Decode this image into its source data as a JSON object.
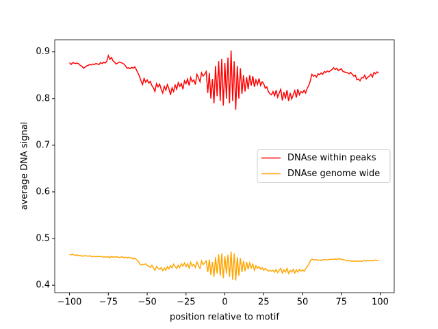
{
  "chart_data": {
    "type": "line",
    "xlabel": "position relative to motif",
    "ylabel": "average DNA signal",
    "xlim": [
      -109.5,
      109
    ],
    "ylim": [
      0.384,
      0.926
    ],
    "xticks": [
      {
        "value": -100,
        "label": "−100"
      },
      {
        "value": -75,
        "label": "−75"
      },
      {
        "value": -50,
        "label": "−50"
      },
      {
        "value": -25,
        "label": "−25"
      },
      0,
      25,
      50,
      75,
      100
    ],
    "yticks": [
      0.4,
      0.5,
      0.6,
      0.7,
      0.8,
      0.9
    ],
    "legend": "center right",
    "x": [
      -100,
      -99,
      -98,
      -97,
      -96,
      -95,
      -94,
      -93,
      -92,
      -91,
      -90,
      -89,
      -88,
      -87,
      -86,
      -85,
      -84,
      -83,
      -82,
      -81,
      -80,
      -79,
      -78,
      -77,
      -76,
      -75,
      -74,
      -73,
      -72,
      -71,
      -70,
      -69,
      -68,
      -67,
      -66,
      -65,
      -64,
      -63,
      -62,
      -61,
      -60,
      -59,
      -58,
      -57,
      -56,
      -55,
      -54,
      -53,
      -52,
      -51,
      -50,
      -49,
      -48,
      -47,
      -46,
      -45,
      -44,
      -43,
      -42,
      -41,
      -40,
      -39,
      -38,
      -37,
      -36,
      -35,
      -34,
      -33,
      -32,
      -31,
      -30,
      -29,
      -28,
      -27,
      -26,
      -25,
      -24,
      -23,
      -22,
      -21,
      -20,
      -19,
      -18,
      -17,
      -16,
      -15,
      -14,
      -13,
      -12,
      -11,
      -10,
      -9,
      -8,
      -7,
      -6,
      -5,
      -4,
      -3,
      -2,
      -1,
      0,
      1,
      2,
      3,
      4,
      5,
      6,
      7,
      8,
      9,
      10,
      11,
      12,
      13,
      14,
      15,
      16,
      17,
      18,
      19,
      20,
      21,
      22,
      23,
      24,
      25,
      26,
      27,
      28,
      29,
      30,
      31,
      32,
      33,
      34,
      35,
      36,
      37,
      38,
      39,
      40,
      41,
      42,
      43,
      44,
      45,
      46,
      47,
      48,
      49,
      50,
      51,
      52,
      53,
      54,
      55,
      56,
      57,
      58,
      59,
      60,
      61,
      62,
      63,
      64,
      65,
      66,
      67,
      68,
      69,
      70,
      71,
      72,
      73,
      74,
      75,
      76,
      77,
      78,
      79,
      80,
      81,
      82,
      83,
      84,
      85,
      86,
      87,
      88,
      89,
      90,
      91,
      92,
      93,
      94,
      95,
      96,
      97,
      98,
      99
    ],
    "series": [
      {
        "name": "DNAse within peaks",
        "color": "#ff0000",
        "values": [
          0.877,
          0.873,
          0.877,
          0.876,
          0.875,
          0.876,
          0.874,
          0.871,
          0.869,
          0.865,
          0.867,
          0.87,
          0.871,
          0.873,
          0.872,
          0.874,
          0.873,
          0.875,
          0.874,
          0.873,
          0.877,
          0.875,
          0.878,
          0.876,
          0.88,
          0.892,
          0.884,
          0.888,
          0.881,
          0.878,
          0.874,
          0.876,
          0.878,
          0.877,
          0.876,
          0.874,
          0.87,
          0.865,
          0.866,
          0.864,
          0.867,
          0.865,
          0.868,
          0.862,
          0.855,
          0.848,
          0.838,
          0.83,
          0.843,
          0.835,
          0.84,
          0.833,
          0.837,
          0.828,
          0.823,
          0.815,
          0.832,
          0.825,
          0.831,
          0.82,
          0.812,
          0.826,
          0.818,
          0.83,
          0.821,
          0.808,
          0.823,
          0.815,
          0.829,
          0.82,
          0.834,
          0.826,
          0.832,
          0.82,
          0.838,
          0.832,
          0.842,
          0.828,
          0.845,
          0.836,
          0.84,
          0.83,
          0.852,
          0.845,
          0.836,
          0.855,
          0.848,
          0.852,
          0.858,
          0.812,
          0.855,
          0.8,
          0.842,
          0.79,
          0.87,
          0.805,
          0.88,
          0.795,
          0.885,
          0.785,
          0.876,
          0.8,
          0.888,
          0.79,
          0.903,
          0.795,
          0.88,
          0.776,
          0.87,
          0.8,
          0.865,
          0.81,
          0.85,
          0.815,
          0.846,
          0.82,
          0.85,
          0.828,
          0.848,
          0.825,
          0.84,
          0.83,
          0.843,
          0.828,
          0.836,
          0.832,
          0.822,
          0.825,
          0.815,
          0.81,
          0.808,
          0.815,
          0.806,
          0.818,
          0.803,
          0.812,
          0.82,
          0.796,
          0.814,
          0.8,
          0.818,
          0.795,
          0.812,
          0.799,
          0.808,
          0.817,
          0.802,
          0.82,
          0.808,
          0.815,
          0.812,
          0.818,
          0.812,
          0.822,
          0.828,
          0.838,
          0.852,
          0.848,
          0.85,
          0.846,
          0.853,
          0.851,
          0.855,
          0.852,
          0.858,
          0.856,
          0.859,
          0.857,
          0.86,
          0.862,
          0.866,
          0.862,
          0.865,
          0.86,
          0.862,
          0.864,
          0.858,
          0.857,
          0.856,
          0.855,
          0.853,
          0.856,
          0.852,
          0.848,
          0.85,
          0.84,
          0.842,
          0.838,
          0.845,
          0.844,
          0.85,
          0.842,
          0.846,
          0.848,
          0.852,
          0.846,
          0.856,
          0.853,
          0.857,
          0.855
        ]
      },
      {
        "name": "DNAse genome wide",
        "color": "#ffa500",
        "values": [
          0.466,
          0.465,
          0.466,
          0.465,
          0.464,
          0.465,
          0.463,
          0.464,
          0.462,
          0.463,
          0.463,
          0.463,
          0.462,
          0.463,
          0.462,
          0.461,
          0.462,
          0.461,
          0.462,
          0.461,
          0.462,
          0.461,
          0.46,
          0.461,
          0.46,
          0.461,
          0.459,
          0.462,
          0.46,
          0.461,
          0.46,
          0.461,
          0.459,
          0.46,
          0.461,
          0.459,
          0.46,
          0.458,
          0.46,
          0.458,
          0.459,
          0.456,
          0.458,
          0.455,
          0.452,
          0.447,
          0.443,
          0.445,
          0.444,
          0.446,
          0.442,
          0.441,
          0.438,
          0.443,
          0.437,
          0.432,
          0.44,
          0.436,
          0.434,
          0.438,
          0.431,
          0.437,
          0.432,
          0.44,
          0.435,
          0.442,
          0.437,
          0.445,
          0.44,
          0.436,
          0.443,
          0.438,
          0.446,
          0.441,
          0.448,
          0.44,
          0.446,
          0.437,
          0.449,
          0.441,
          0.445,
          0.438,
          0.45,
          0.442,
          0.436,
          0.452,
          0.444,
          0.448,
          0.452,
          0.428,
          0.455,
          0.422,
          0.45,
          0.418,
          0.46,
          0.425,
          0.466,
          0.42,
          0.468,
          0.415,
          0.462,
          0.425,
          0.465,
          0.418,
          0.472,
          0.412,
          0.468,
          0.41,
          0.46,
          0.42,
          0.458,
          0.428,
          0.452,
          0.43,
          0.45,
          0.434,
          0.448,
          0.437,
          0.445,
          0.432,
          0.442,
          0.436,
          0.44,
          0.434,
          0.438,
          0.432,
          0.436,
          0.433,
          0.43,
          0.432,
          0.43,
          0.432,
          0.428,
          0.434,
          0.427,
          0.432,
          0.436,
          0.426,
          0.433,
          0.428,
          0.436,
          0.425,
          0.432,
          0.428,
          0.434,
          0.426,
          0.433,
          0.428,
          0.434,
          0.43,
          0.433,
          0.43,
          0.435,
          0.44,
          0.444,
          0.452,
          0.456,
          0.455,
          0.454,
          0.455,
          0.453,
          0.454,
          0.453,
          0.455,
          0.454,
          0.455,
          0.454,
          0.455,
          0.456,
          0.455,
          0.456,
          0.456,
          0.455,
          0.457,
          0.456,
          0.456,
          0.455,
          0.454,
          0.453,
          0.452,
          0.453,
          0.452,
          0.451,
          0.452,
          0.451,
          0.452,
          0.451,
          0.452,
          0.451,
          0.452,
          0.453,
          0.452,
          0.453,
          0.452,
          0.453,
          0.452,
          0.453,
          0.454,
          0.453,
          0.453
        ]
      }
    ]
  }
}
